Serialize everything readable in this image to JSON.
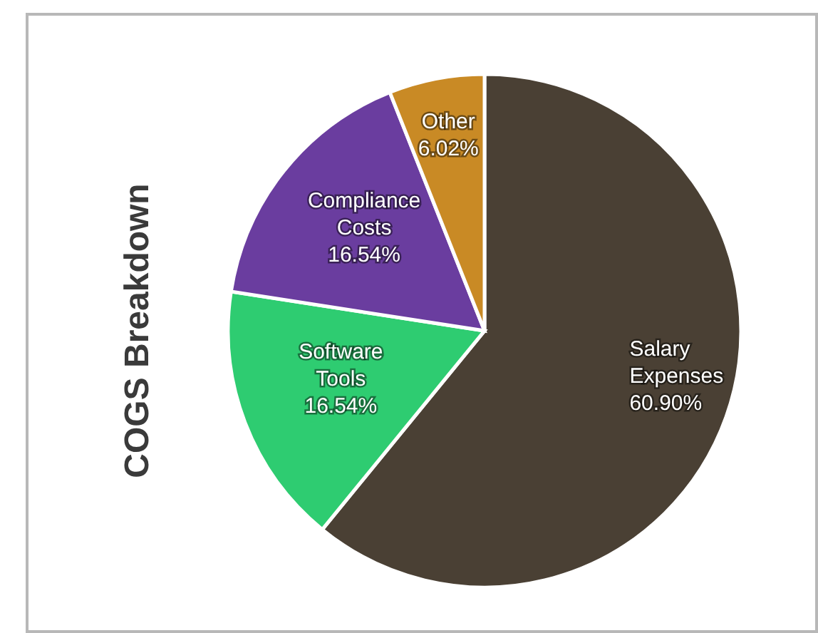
{
  "chart_data": {
    "type": "pie",
    "title": "COGS Breakdown",
    "categories": [
      "Salary Expenses",
      "Software Tools",
      "Compliance Costs",
      "Other"
    ],
    "values": [
      60.9,
      16.54,
      16.54,
      6.02
    ],
    "colors": [
      "#4a4034",
      "#2ecc71",
      "#6a3d9f",
      "#c98a25"
    ],
    "value_labels": [
      "60.90%",
      "16.54%",
      "16.54%",
      "6.02%"
    ]
  }
}
